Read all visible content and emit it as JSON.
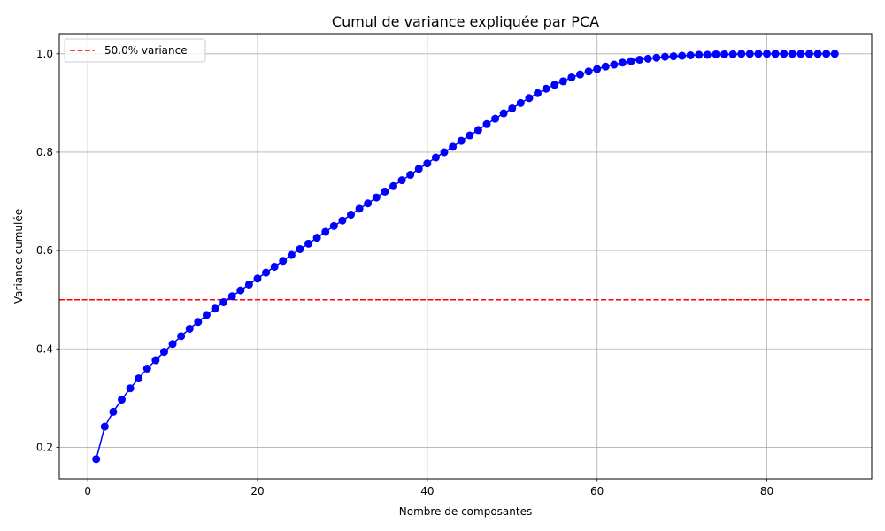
{
  "chart_data": {
    "type": "line",
    "title": "Cumul de variance expliquée par PCA",
    "xlabel": "Nombre de composantes",
    "ylabel": "Variance cumulée",
    "xlim": [
      -3.35,
      92.35
    ],
    "ylim": [
      0.136,
      1.041
    ],
    "xticks": [
      0,
      20,
      40,
      60,
      80
    ],
    "xtick_labels": [
      "0",
      "20",
      "40",
      "60",
      "80"
    ],
    "yticks": [
      0.2,
      0.4,
      0.6,
      0.8,
      1.0
    ],
    "ytick_labels": [
      "0.2",
      "0.4",
      "0.6",
      "0.8",
      "1.0"
    ],
    "grid": true,
    "legend_position": "top-left",
    "series": [
      {
        "color": "#0000ff",
        "marker": "circle",
        "x": [
          1,
          2,
          3,
          4,
          5,
          6,
          7,
          8,
          9,
          10,
          11,
          12,
          13,
          14,
          15,
          16,
          17,
          18,
          19,
          20,
          21,
          22,
          23,
          24,
          25,
          26,
          27,
          28,
          29,
          30,
          31,
          32,
          33,
          34,
          35,
          36,
          37,
          38,
          39,
          40,
          41,
          42,
          43,
          44,
          45,
          46,
          47,
          48,
          49,
          50,
          51,
          52,
          53,
          54,
          55,
          56,
          57,
          58,
          59,
          60,
          61,
          62,
          63,
          64,
          65,
          66,
          67,
          68,
          69,
          70,
          71,
          72,
          73,
          74,
          75,
          76,
          77,
          78,
          79,
          80,
          81,
          82,
          83,
          84,
          85,
          86,
          87,
          88
        ],
        "values": [
          0.176,
          0.242,
          0.272,
          0.297,
          0.32,
          0.34,
          0.36,
          0.377,
          0.394,
          0.41,
          0.426,
          0.441,
          0.455,
          0.469,
          0.482,
          0.495,
          0.507,
          0.519,
          0.531,
          0.543,
          0.555,
          0.567,
          0.579,
          0.591,
          0.603,
          0.614,
          0.626,
          0.638,
          0.65,
          0.661,
          0.673,
          0.685,
          0.696,
          0.708,
          0.72,
          0.731,
          0.743,
          0.754,
          0.766,
          0.777,
          0.789,
          0.8,
          0.811,
          0.823,
          0.834,
          0.845,
          0.857,
          0.868,
          0.879,
          0.889,
          0.9,
          0.91,
          0.92,
          0.929,
          0.937,
          0.944,
          0.952,
          0.958,
          0.964,
          0.969,
          0.974,
          0.978,
          0.982,
          0.985,
          0.988,
          0.99,
          0.992,
          0.994,
          0.995,
          0.996,
          0.997,
          0.998,
          0.998,
          0.999,
          0.999,
          0.999,
          1.0,
          1.0,
          1.0,
          1.0,
          1.0,
          1.0,
          1.0,
          1.0,
          1.0,
          1.0,
          1.0,
          1.0
        ]
      }
    ],
    "threshold": {
      "value": 0.5,
      "color": "#ff0000",
      "style": "dashed",
      "label": "50.0% variance"
    }
  }
}
